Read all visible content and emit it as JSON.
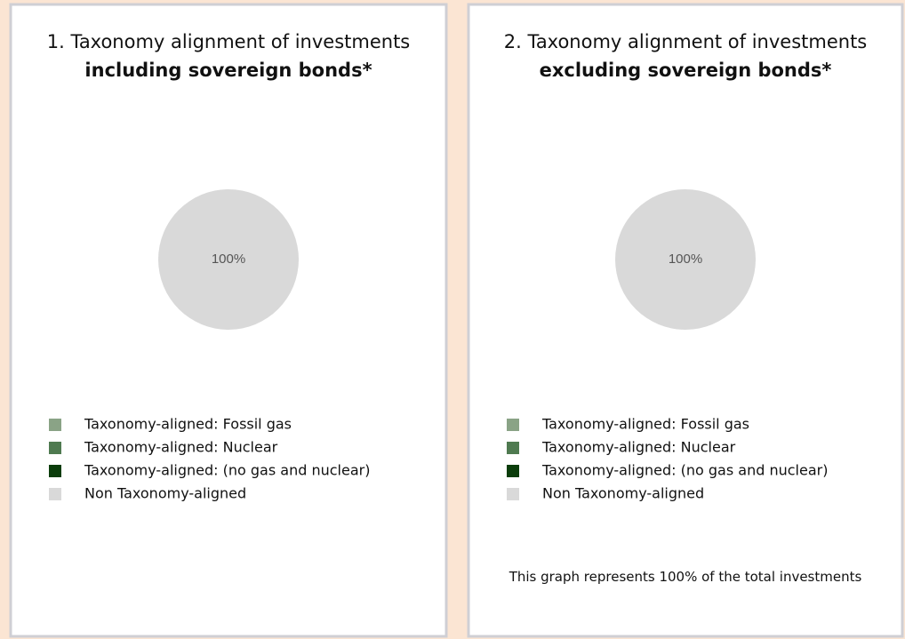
{
  "chart_data": [
    {
      "type": "pie",
      "title": "1. Taxonomy alignment of investments",
      "subtitle": "including sovereign bonds*",
      "categories": [
        "Taxonomy-aligned: Fossil gas",
        "Taxonomy-aligned: Nuclear",
        "Taxonomy-aligned: (no gas and nuclear)",
        "Non Taxonomy-aligned"
      ],
      "values": [
        0,
        0,
        0,
        100
      ],
      "value_labels": [
        null,
        null,
        null,
        "100%"
      ],
      "colors": [
        "#8aa386",
        "#4f7a50",
        "#0b3d0b",
        "#d9d9d9"
      ]
    },
    {
      "type": "pie",
      "title": "2. Taxonomy alignment of investments",
      "subtitle": "excluding sovereign bonds*",
      "categories": [
        "Taxonomy-aligned: Fossil gas",
        "Taxonomy-aligned: Nuclear",
        "Taxonomy-aligned: (no gas and nuclear)",
        "Non Taxonomy-aligned"
      ],
      "values": [
        0,
        0,
        0,
        100
      ],
      "value_labels": [
        null,
        null,
        null,
        "100%"
      ],
      "colors": [
        "#8aa386",
        "#4f7a50",
        "#0b3d0b",
        "#d9d9d9"
      ],
      "note": "This graph represents 100% of the total investments"
    }
  ]
}
